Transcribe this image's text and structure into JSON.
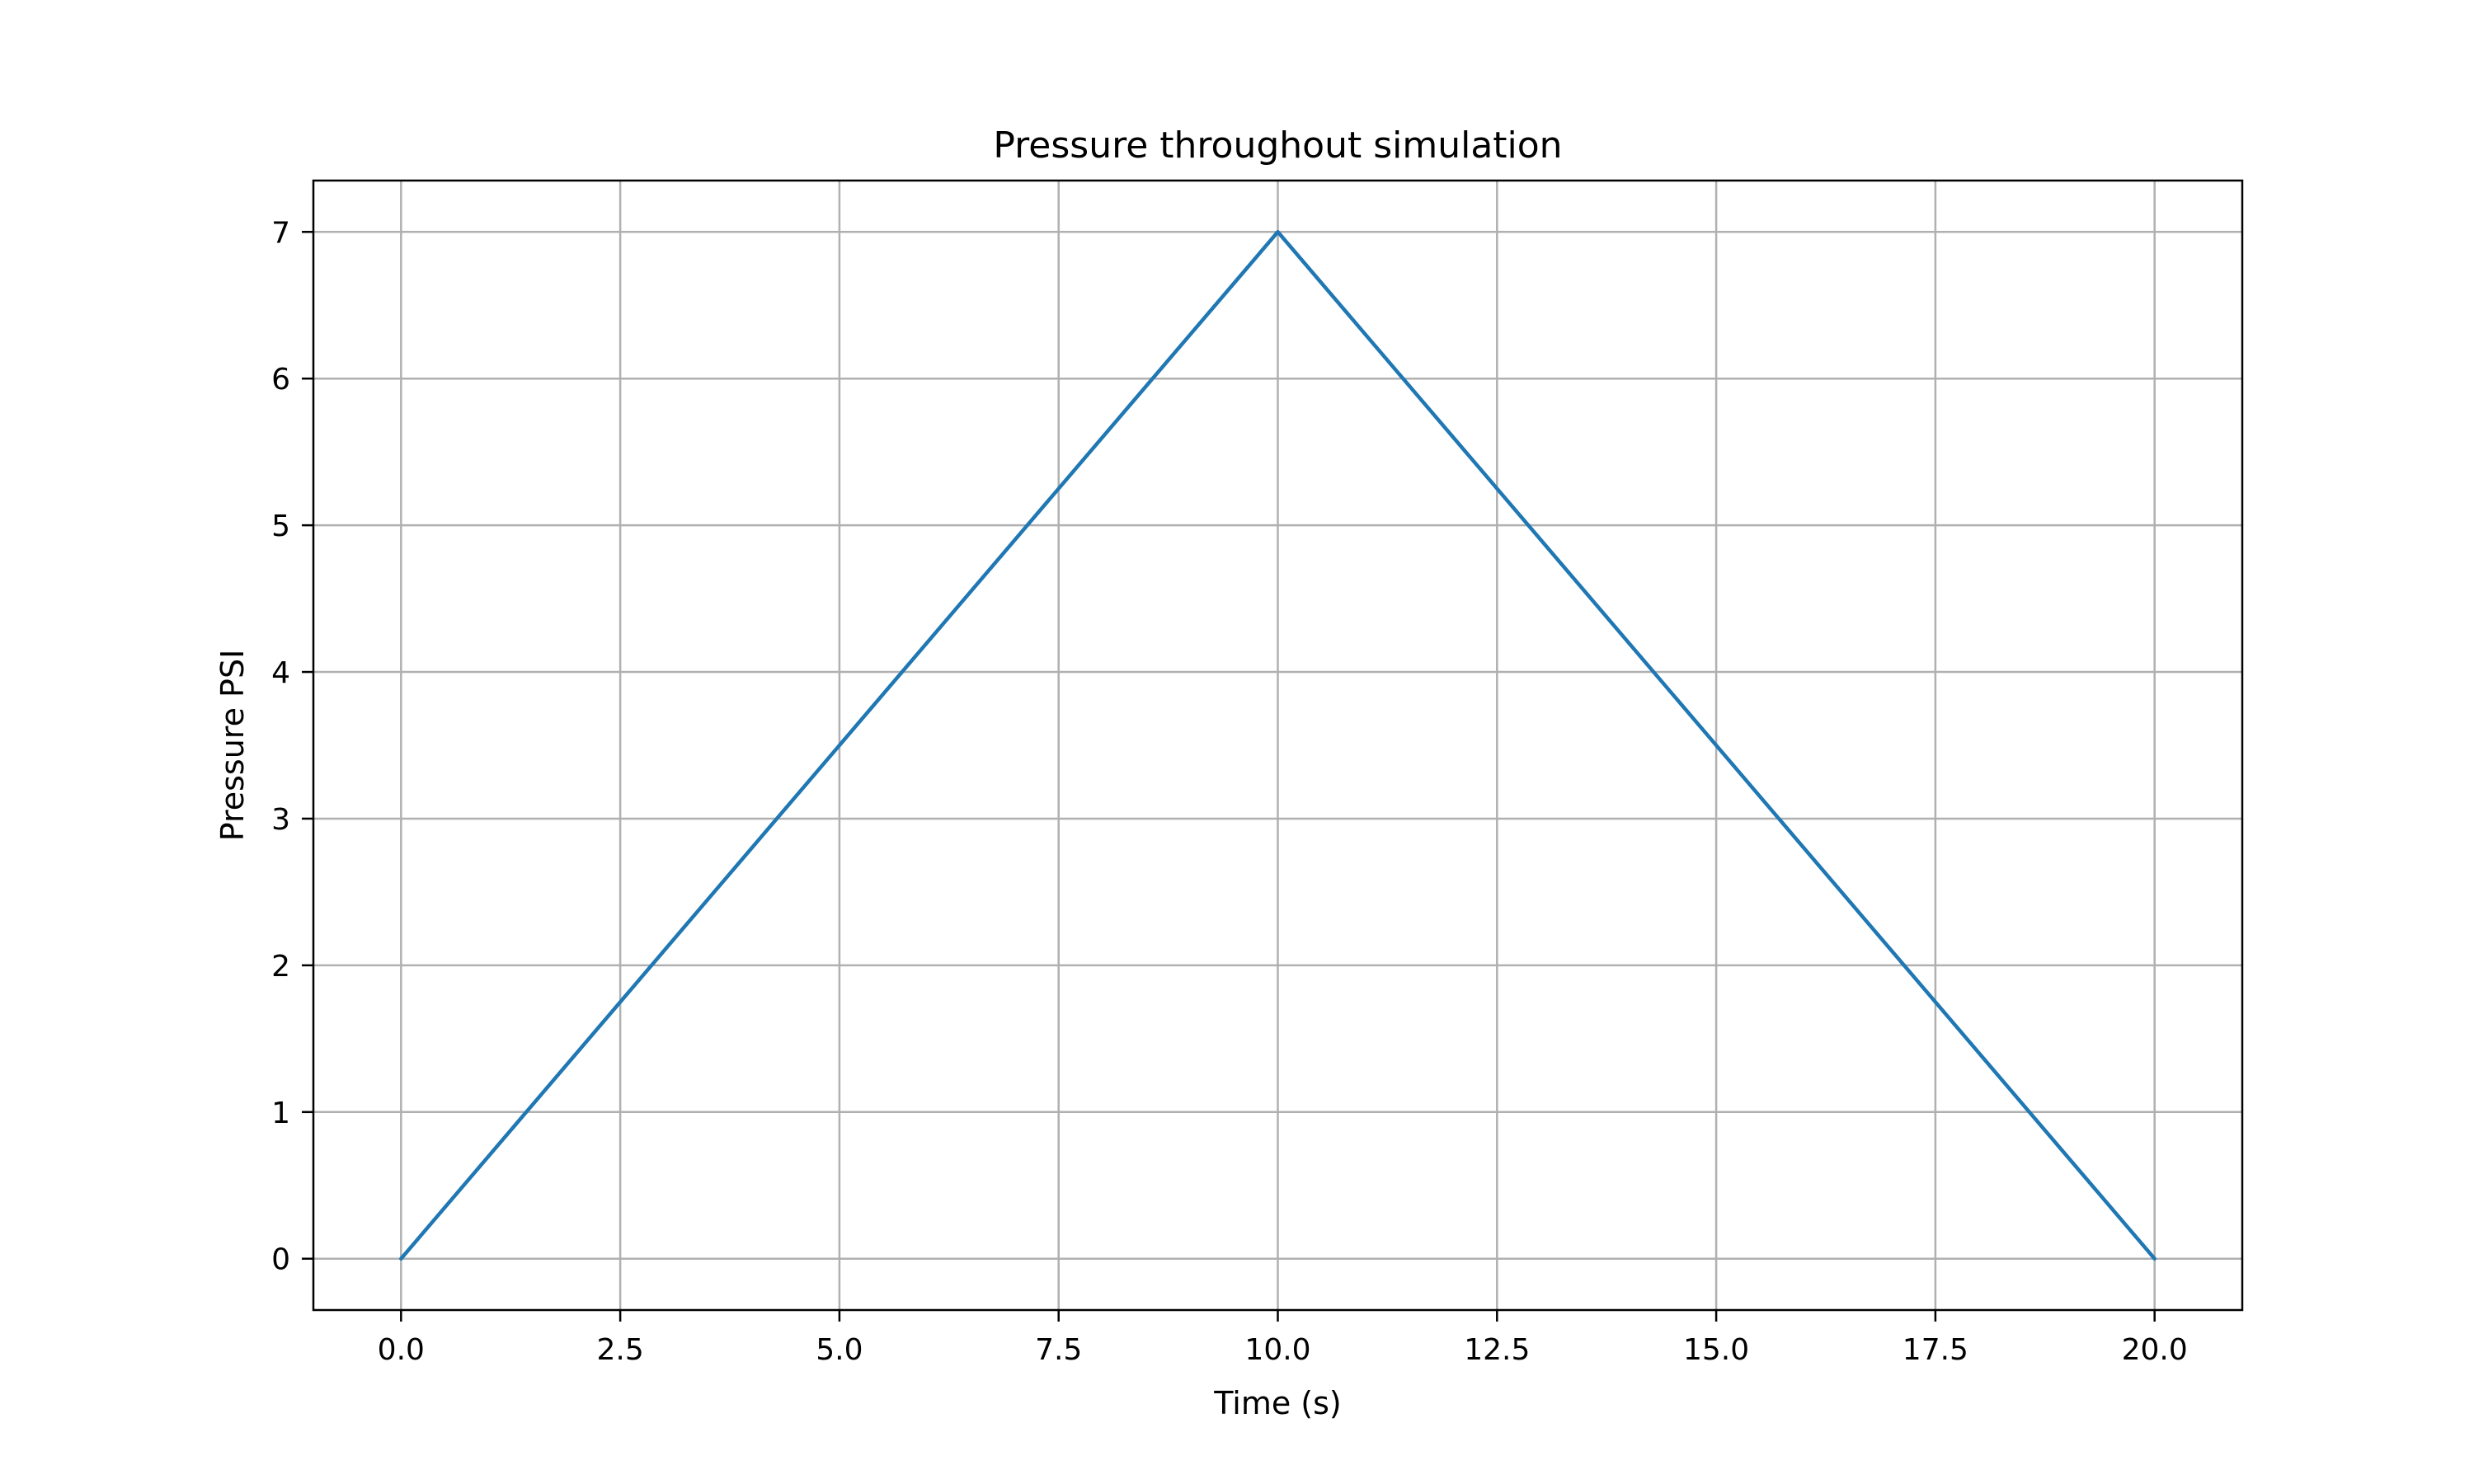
{
  "chart_data": {
    "type": "line",
    "title": "Pressure throughout simulation",
    "xlabel": "Time (s)",
    "ylabel": "Pressure PSI",
    "xlim": [
      -1.0,
      21.0
    ],
    "ylim": [
      -0.35,
      7.35
    ],
    "xticks": [
      0.0,
      2.5,
      5.0,
      7.5,
      10.0,
      12.5,
      15.0,
      17.5,
      20.0
    ],
    "xtick_labels": [
      "0.0",
      "2.5",
      "5.0",
      "7.5",
      "10.0",
      "12.5",
      "15.0",
      "17.5",
      "20.0"
    ],
    "yticks": [
      0,
      1,
      2,
      3,
      4,
      5,
      6,
      7
    ],
    "ytick_labels": [
      "0",
      "1",
      "2",
      "3",
      "4",
      "5",
      "6",
      "7"
    ],
    "grid": true,
    "series": [
      {
        "x": [
          0,
          10,
          20
        ],
        "y": [
          0,
          7,
          0
        ],
        "color": "#1f77b4"
      }
    ],
    "colors": {
      "line": "#1f77b4",
      "grid": "#b0b0b0",
      "axes": "#000000"
    }
  }
}
